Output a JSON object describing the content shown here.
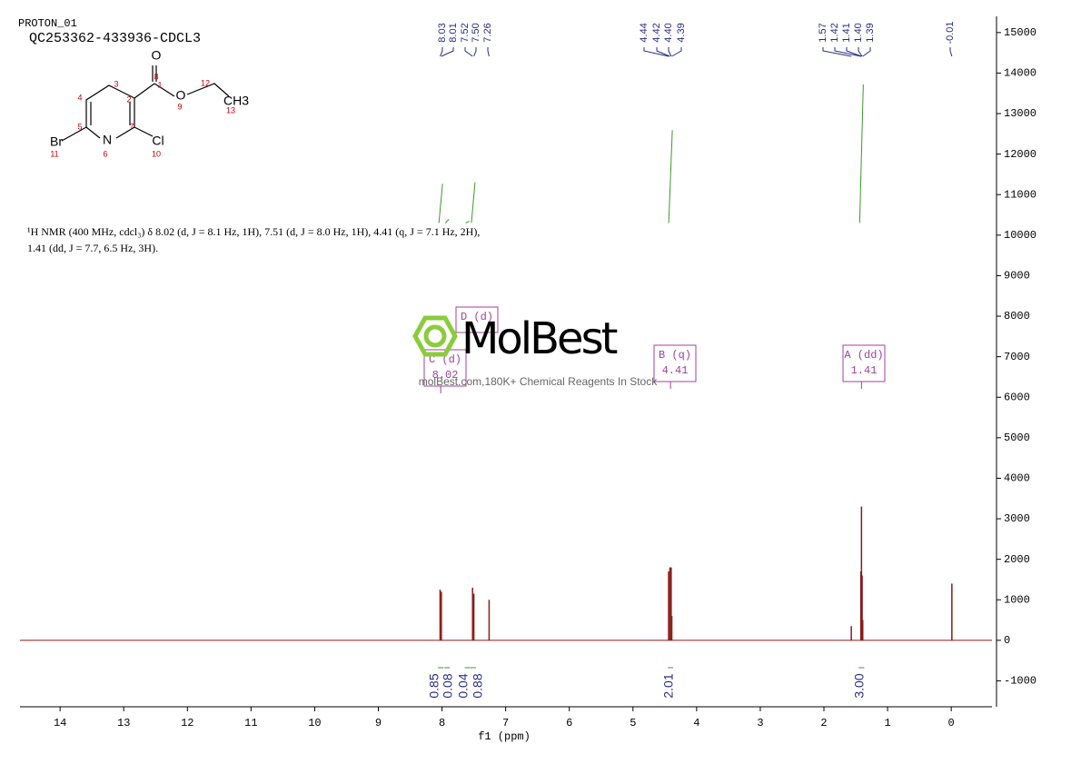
{
  "chart_data": {
    "type": "nmr",
    "sample_id": "PROTON_01",
    "title": "QC253362-433936-CDCL3",
    "description": [
      "¹H NMR (400 MHz, cdcl₃) δ 8.02 (d, J = 8.1 Hz, 1H), 7.51 (d, J = 8.0 Hz, 1H), 4.41 (q, J = 7.1 Hz, 2H),",
      "1.41 (dd, J = 7.7, 6.5 Hz, 3H)."
    ],
    "xlabel": "f1 (ppm)",
    "xlim": [
      14.63,
      -0.64
    ],
    "xticks": [
      14,
      13,
      12,
      11,
      10,
      9,
      8,
      7,
      6,
      5,
      4,
      3,
      2,
      1,
      0
    ],
    "ylim": [
      -1640,
      15400
    ],
    "yticks": [
      -1000,
      0,
      1000,
      2000,
      3000,
      4000,
      5000,
      6000,
      7000,
      8000,
      9000,
      10000,
      11000,
      12000,
      13000,
      14000,
      15000
    ],
    "color": "#8b1a1a",
    "label_color": "#2a2a8a",
    "integral_color": "#3a9a2a",
    "multiplet_color": "#a040a0",
    "peaks": {
      "x": [
        8.03,
        8.01,
        7.52,
        7.5,
        7.26,
        4.44,
        4.42,
        4.4,
        4.39,
        1.57,
        1.42,
        1.41,
        1.4,
        1.39,
        -0.01
      ],
      "labels": [
        "8.03",
        "8.01",
        "7.52",
        "7.50",
        "7.26",
        "4.44",
        "4.42",
        "4.40",
        "4.39",
        "1.57",
        "1.42",
        "1.41",
        "1.40",
        "1.39",
        "-0.01"
      ],
      "values": [
        1250,
        1200,
        1300,
        1150,
        1000,
        1700,
        1800,
        1800,
        600,
        350,
        1700,
        3300,
        1600,
        500,
        1400
      ]
    },
    "integrals": {
      "x": [
        8.02,
        7.92,
        7.6,
        7.51,
        4.41,
        1.41
      ],
      "values": [
        0.85,
        0.08,
        0.04,
        0.88,
        2.01,
        3.0
      ],
      "labels": [
        "0.85",
        "0.08",
        "0.04",
        "0.88",
        "2.01",
        "3.00"
      ]
    },
    "multiplets": [
      {
        "label": "A (dd)",
        "shift": 1.41
      },
      {
        "label": "B (q)",
        "shift": 4.41
      },
      {
        "label": "C (d)",
        "shift": 8.02
      },
      {
        "label": "D (d)"
      }
    ],
    "structure": {
      "atoms": [
        "O",
        "8",
        "1",
        "12",
        "CH3",
        "13",
        "O",
        "9",
        "3",
        "4",
        "2",
        "5",
        "7",
        "Br",
        "11",
        "N",
        "6",
        "Cl",
        "10"
      ]
    },
    "watermark": {
      "brand": "MolBest",
      "tagline": "molBest.com,180K+ Chemical Reagents In Stock"
    }
  }
}
